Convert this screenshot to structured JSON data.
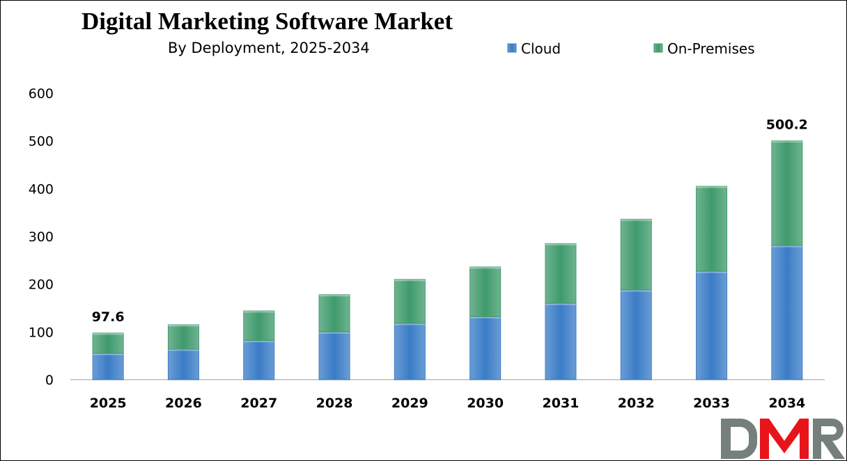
{
  "chart_data": {
    "type": "bar",
    "stacked": true,
    "title": "Digital Marketing Software Market",
    "subtitle": "By Deployment, 2025-2034",
    "categories": [
      "2025",
      "2026",
      "2027",
      "2028",
      "2029",
      "2030",
      "2031",
      "2032",
      "2033",
      "2034"
    ],
    "series": [
      {
        "name": "Cloud",
        "color": "#3a7cc6",
        "values": [
          55,
          64,
          82,
          100,
          118,
          132,
          160,
          188,
          227,
          281
        ]
      },
      {
        "name": "On-Premises",
        "color": "#3f9a6c",
        "values": [
          42.6,
          51,
          62,
          78,
          92,
          104,
          125,
          148,
          178,
          219.2
        ]
      }
    ],
    "data_labels": [
      {
        "category": "2025",
        "text": "97.6"
      },
      {
        "category": "2034",
        "text": "500.2"
      }
    ],
    "ylim": [
      0,
      600
    ],
    "yticks": [
      0,
      100,
      200,
      300,
      400,
      500,
      600
    ],
    "grid": false,
    "legend": "top-right"
  },
  "logo": {
    "text": "DMR"
  }
}
